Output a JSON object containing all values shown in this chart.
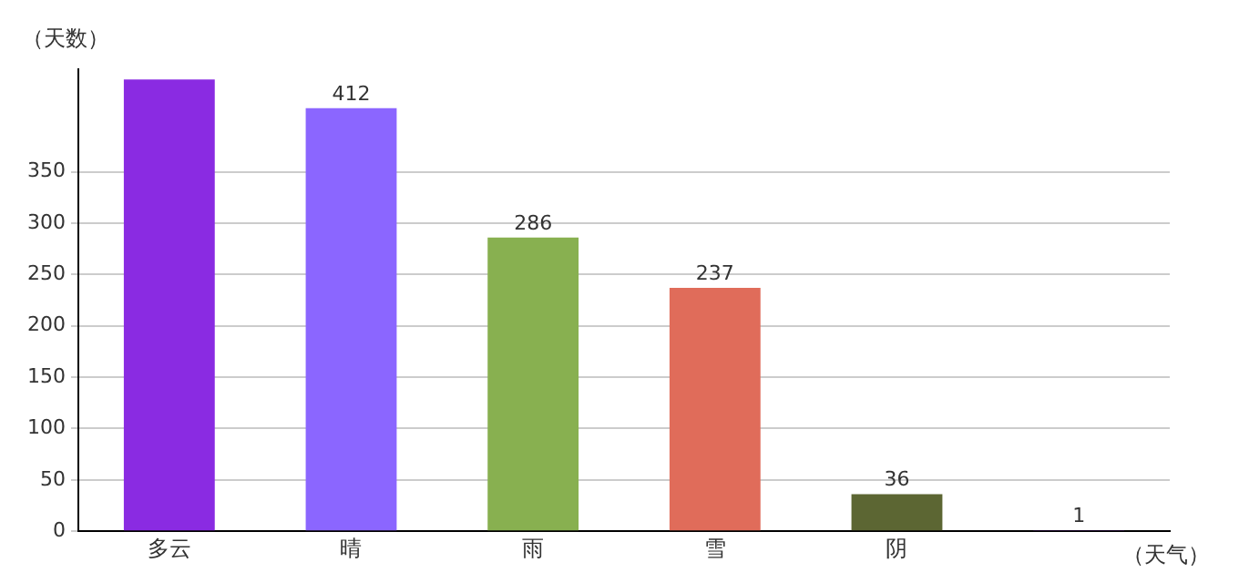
{
  "chart_data": {
    "type": "bar",
    "ylabel": "（天数）",
    "xlabel": "（天气）",
    "categories": [
      "多云",
      "晴",
      "雨",
      "雪",
      "阴",
      null
    ],
    "values": [
      440,
      412,
      286,
      237,
      36,
      1
    ],
    "colors": [
      "#8a2be2",
      "#8b66ff",
      "#88b050",
      "#e06c5a",
      "#5c6633",
      "#4b0082"
    ],
    "value_labels": [
      null,
      "412",
      "286",
      "237",
      "36",
      "1"
    ],
    "ylim": [
      0,
      450
    ],
    "yticks": [
      0,
      50,
      100,
      150,
      200,
      250,
      300,
      350
    ],
    "grid": "y"
  }
}
